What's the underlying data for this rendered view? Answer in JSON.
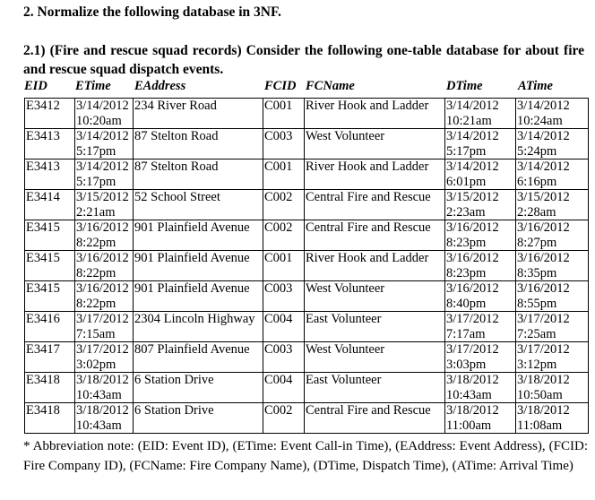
{
  "heading": "2. Normalize the following database in 3NF.",
  "intro": "2.1) (Fire and rescue squad records) Consider the following one-table database for about fire and rescue squad dispatch events.",
  "columns": [
    "EID",
    "ETime",
    "EAddress",
    "FCID",
    "FCName",
    "DTime",
    "ATime"
  ],
  "rows": [
    [
      "E3412",
      "3/14/2012 10:20am",
      "234 River Road",
      "C001",
      "River Hook and Ladder",
      "3/14/2012 10:21am",
      "3/14/2012 10:24am"
    ],
    [
      "E3413",
      "3/14/2012 5:17pm",
      "87 Stelton Road",
      "C003",
      "West Volunteer",
      "3/14/2012 5:17pm",
      "3/14/2012 5:24pm"
    ],
    [
      "E3413",
      "3/14/2012 5:17pm",
      "87 Stelton Road",
      "C001",
      "River Hook and Ladder",
      "3/14/2012 6:01pm",
      "3/14/2012 6:16pm"
    ],
    [
      "E3414",
      "3/15/2012 2:21am",
      "52 School Street",
      "C002",
      "Central Fire and Rescue",
      "3/15/2012 2:23am",
      "3/15/2012 2:28am"
    ],
    [
      "E3415",
      "3/16/2012 8:22pm",
      "901 Plainfield Avenue",
      "C002",
      "Central Fire and Rescue",
      "3/16/2012 8:23pm",
      "3/16/2012 8:27pm"
    ],
    [
      "E3415",
      "3/16/2012 8:22pm",
      "901 Plainfield Avenue",
      "C001",
      "River Hook and Ladder",
      "3/16/2012 8:23pm",
      "3/16/2012 8:35pm"
    ],
    [
      "E3415",
      "3/16/2012 8:22pm",
      "901 Plainfield Avenue",
      "C003",
      "West Volunteer",
      "3/16/2012 8:40pm",
      "3/16/2012 8:55pm"
    ],
    [
      "E3416",
      "3/17/2012 7:15am",
      "2304 Lincoln Highway",
      "C004",
      "East Volunteer",
      "3/17/2012 7:17am",
      "3/17/2012 7:25am"
    ],
    [
      "E3417",
      "3/17/2012 3:02pm",
      "807 Plainfield Avenue",
      "C003",
      "West Volunteer",
      "3/17/2012 3:03pm",
      "3/17/2012 3:12pm"
    ],
    [
      "E3418",
      "3/18/2012 10:43am",
      "6 Station Drive",
      "C004",
      "East Volunteer",
      "3/18/2012 10:43am",
      "3/18/2012 10:50am"
    ],
    [
      "E3418",
      "3/18/2012 10:43am",
      "6 Station Drive",
      "C002",
      "Central Fire and Rescue",
      "3/18/2012 11:00am",
      "3/18/2012 11:08am"
    ]
  ],
  "note": "* Abbreviation note: (EID: Event ID), (ETime: Event Call-in Time), (EAddress: Event Address), (FCID: Fire Company ID), (FCName: Fire Company Name), (DTime, Dispatch Time), (ATime: Arrival Time)"
}
